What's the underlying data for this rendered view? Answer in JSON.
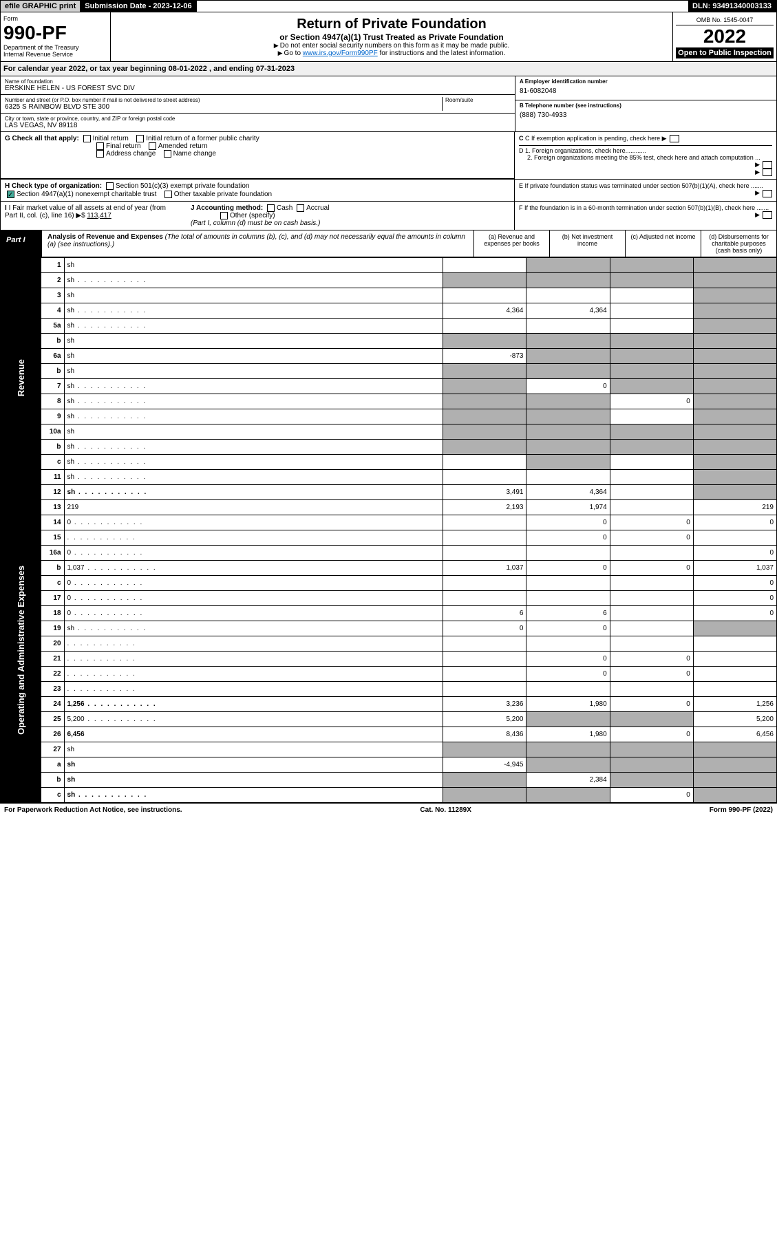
{
  "header": {
    "efile": "efile GRAPHIC print",
    "submission": "Submission Date - 2023-12-06",
    "dln": "DLN: 93491340003133",
    "omb": "OMB No. 1545-0047",
    "form_word": "Form",
    "form_no": "990-PF",
    "dept": "Department of the Treasury",
    "irs": "Internal Revenue Service",
    "title": "Return of Private Foundation",
    "subtitle": "or Section 4947(a)(1) Trust Treated as Private Foundation",
    "directive1": "Do not enter social security numbers on this form as it may be made public.",
    "directive2_pre": "Go to ",
    "directive2_link": "www.irs.gov/Form990PF",
    "directive2_post": " for instructions and the latest information.",
    "year": "2022",
    "open": "Open to Public Inspection"
  },
  "cal_year": "For calendar year 2022, or tax year beginning 08-01-2022                           , and ending 07-31-2023",
  "foundation": {
    "name_lbl": "Name of foundation",
    "name": "ERSKINE HELEN - US FOREST SVC DIV",
    "ein_lbl": "A Employer identification number",
    "ein": "81-6082048",
    "addr_lbl": "Number and street (or P.O. box number if mail is not delivered to street address)",
    "addr": "6325 S RAINBOW BLVD STE 300",
    "room_lbl": "Room/suite",
    "phone_lbl": "B Telephone number (see instructions)",
    "phone": "(888) 730-4933",
    "city_lbl": "City or town, state or province, country, and ZIP or foreign postal code",
    "city": "LAS VEGAS, NV  89118",
    "c_lbl": "C If exemption application is pending, check here",
    "d1": "D 1. Foreign organizations, check here............",
    "d2": "2. Foreign organizations meeting the 85% test, check here and attach computation ...",
    "e_lbl": "E  If private foundation status was terminated under section 507(b)(1)(A), check here .......",
    "f_lbl": "F  If the foundation is in a 60-month termination under section 507(b)(1)(B), check here .......",
    "g_lbl": "G Check all that apply:",
    "g_opts": [
      "Initial return",
      "Initial return of a former public charity",
      "Final return",
      "Amended return",
      "Address change",
      "Name change"
    ],
    "h_lbl": "H Check type of organization:",
    "h1": "Section 501(c)(3) exempt private foundation",
    "h2": "Section 4947(a)(1) nonexempt charitable trust",
    "h3": "Other taxable private foundation",
    "i_lbl": "I Fair market value of all assets at end of year (from Part II, col. (c), line 16)",
    "i_val": "113,417",
    "j_lbl": "J Accounting method:",
    "j_cash": "Cash",
    "j_accrual": "Accrual",
    "j_other": "Other (specify)",
    "j_note": "(Part I, column (d) must be on cash basis.)"
  },
  "part1": {
    "tab": "Part I",
    "title": "Analysis of Revenue and Expenses",
    "note": "(The total of amounts in columns (b), (c), and (d) may not necessarily equal the amounts in column (a) (see instructions).)",
    "col_a": "(a)  Revenue and expenses per books",
    "col_b": "(b)  Net investment income",
    "col_c": "(c)  Adjusted net income",
    "col_d": "(d)  Disbursements for charitable purposes (cash basis only)",
    "side_rev": "Revenue",
    "side_exp": "Operating and Administrative Expenses"
  },
  "rows": [
    {
      "n": "1",
      "d": "sh",
      "a": "",
      "b": "sh",
      "c": "sh"
    },
    {
      "n": "2",
      "d": "sh",
      "dots": true,
      "a": "sh",
      "b": "sh",
      "c": "sh"
    },
    {
      "n": "3",
      "d": "sh",
      "a": "",
      "b": "",
      "c": ""
    },
    {
      "n": "4",
      "d": "sh",
      "dots": true,
      "a": "4,364",
      "b": "4,364",
      "c": ""
    },
    {
      "n": "5a",
      "d": "sh",
      "dots": true,
      "a": "",
      "b": "",
      "c": ""
    },
    {
      "n": "b",
      "d": "sh",
      "a": "sh",
      "b": "sh",
      "c": "sh"
    },
    {
      "n": "6a",
      "d": "sh",
      "a": "-873",
      "b": "sh",
      "c": "sh"
    },
    {
      "n": "b",
      "d": "sh",
      "a": "sh",
      "b": "sh",
      "c": "sh"
    },
    {
      "n": "7",
      "d": "sh",
      "dots": true,
      "a": "sh",
      "b": "0",
      "c": "sh"
    },
    {
      "n": "8",
      "d": "sh",
      "dots": true,
      "a": "sh",
      "b": "sh",
      "c": "0"
    },
    {
      "n": "9",
      "d": "sh",
      "dots": true,
      "a": "sh",
      "b": "sh",
      "c": ""
    },
    {
      "n": "10a",
      "d": "sh",
      "a": "sh",
      "b": "sh",
      "c": "sh"
    },
    {
      "n": "b",
      "d": "sh",
      "dots": true,
      "a": "sh",
      "b": "sh",
      "c": "sh"
    },
    {
      "n": "c",
      "d": "sh",
      "dots": true,
      "a": "",
      "b": "sh",
      "c": ""
    },
    {
      "n": "11",
      "d": "sh",
      "dots": true,
      "a": "",
      "b": "",
      "c": ""
    },
    {
      "n": "12",
      "d": "sh",
      "dots": true,
      "bold": true,
      "a": "3,491",
      "b": "4,364",
      "c": ""
    },
    {
      "n": "13",
      "d": "219",
      "a": "2,193",
      "b": "1,974",
      "c": ""
    },
    {
      "n": "14",
      "d": "0",
      "dots": true,
      "a": "",
      "b": "0",
      "c": "0"
    },
    {
      "n": "15",
      "d": "",
      "dots": true,
      "a": "",
      "b": "0",
      "c": "0"
    },
    {
      "n": "16a",
      "d": "0",
      "dots": true,
      "a": "",
      "b": "",
      "c": ""
    },
    {
      "n": "b",
      "d": "1,037",
      "dots": true,
      "a": "1,037",
      "b": "0",
      "c": "0"
    },
    {
      "n": "c",
      "d": "0",
      "dots": true,
      "a": "",
      "b": "",
      "c": ""
    },
    {
      "n": "17",
      "d": "0",
      "dots": true,
      "a": "",
      "b": "",
      "c": ""
    },
    {
      "n": "18",
      "d": "0",
      "dots": true,
      "a": "6",
      "b": "6",
      "c": ""
    },
    {
      "n": "19",
      "d": "sh",
      "dots": true,
      "a": "0",
      "b": "0",
      "c": ""
    },
    {
      "n": "20",
      "d": "",
      "dots": true,
      "a": "",
      "b": "",
      "c": ""
    },
    {
      "n": "21",
      "d": "",
      "dots": true,
      "a": "",
      "b": "0",
      "c": "0"
    },
    {
      "n": "22",
      "d": "",
      "dots": true,
      "a": "",
      "b": "0",
      "c": "0"
    },
    {
      "n": "23",
      "d": "",
      "dots": true,
      "a": "",
      "b": "",
      "c": ""
    },
    {
      "n": "24",
      "d": "1,256",
      "dots": true,
      "bold": true,
      "a": "3,236",
      "b": "1,980",
      "c": "0"
    },
    {
      "n": "25",
      "d": "5,200",
      "dots": true,
      "a": "5,200",
      "b": "sh",
      "c": "sh"
    },
    {
      "n": "26",
      "d": "6,456",
      "bold": true,
      "a": "8,436",
      "b": "1,980",
      "c": "0"
    },
    {
      "n": "27",
      "d": "sh",
      "a": "sh",
      "b": "sh",
      "c": "sh"
    },
    {
      "n": "a",
      "d": "sh",
      "bold": true,
      "a": "-4,945",
      "b": "sh",
      "c": "sh"
    },
    {
      "n": "b",
      "d": "sh",
      "bold": true,
      "a": "sh",
      "b": "2,384",
      "c": "sh"
    },
    {
      "n": "c",
      "d": "sh",
      "dots": true,
      "bold": true,
      "a": "sh",
      "b": "sh",
      "c": "0"
    }
  ],
  "footer": {
    "left": "For Paperwork Reduction Act Notice, see instructions.",
    "mid": "Cat. No. 11289X",
    "right": "Form 990-PF (2022)"
  }
}
